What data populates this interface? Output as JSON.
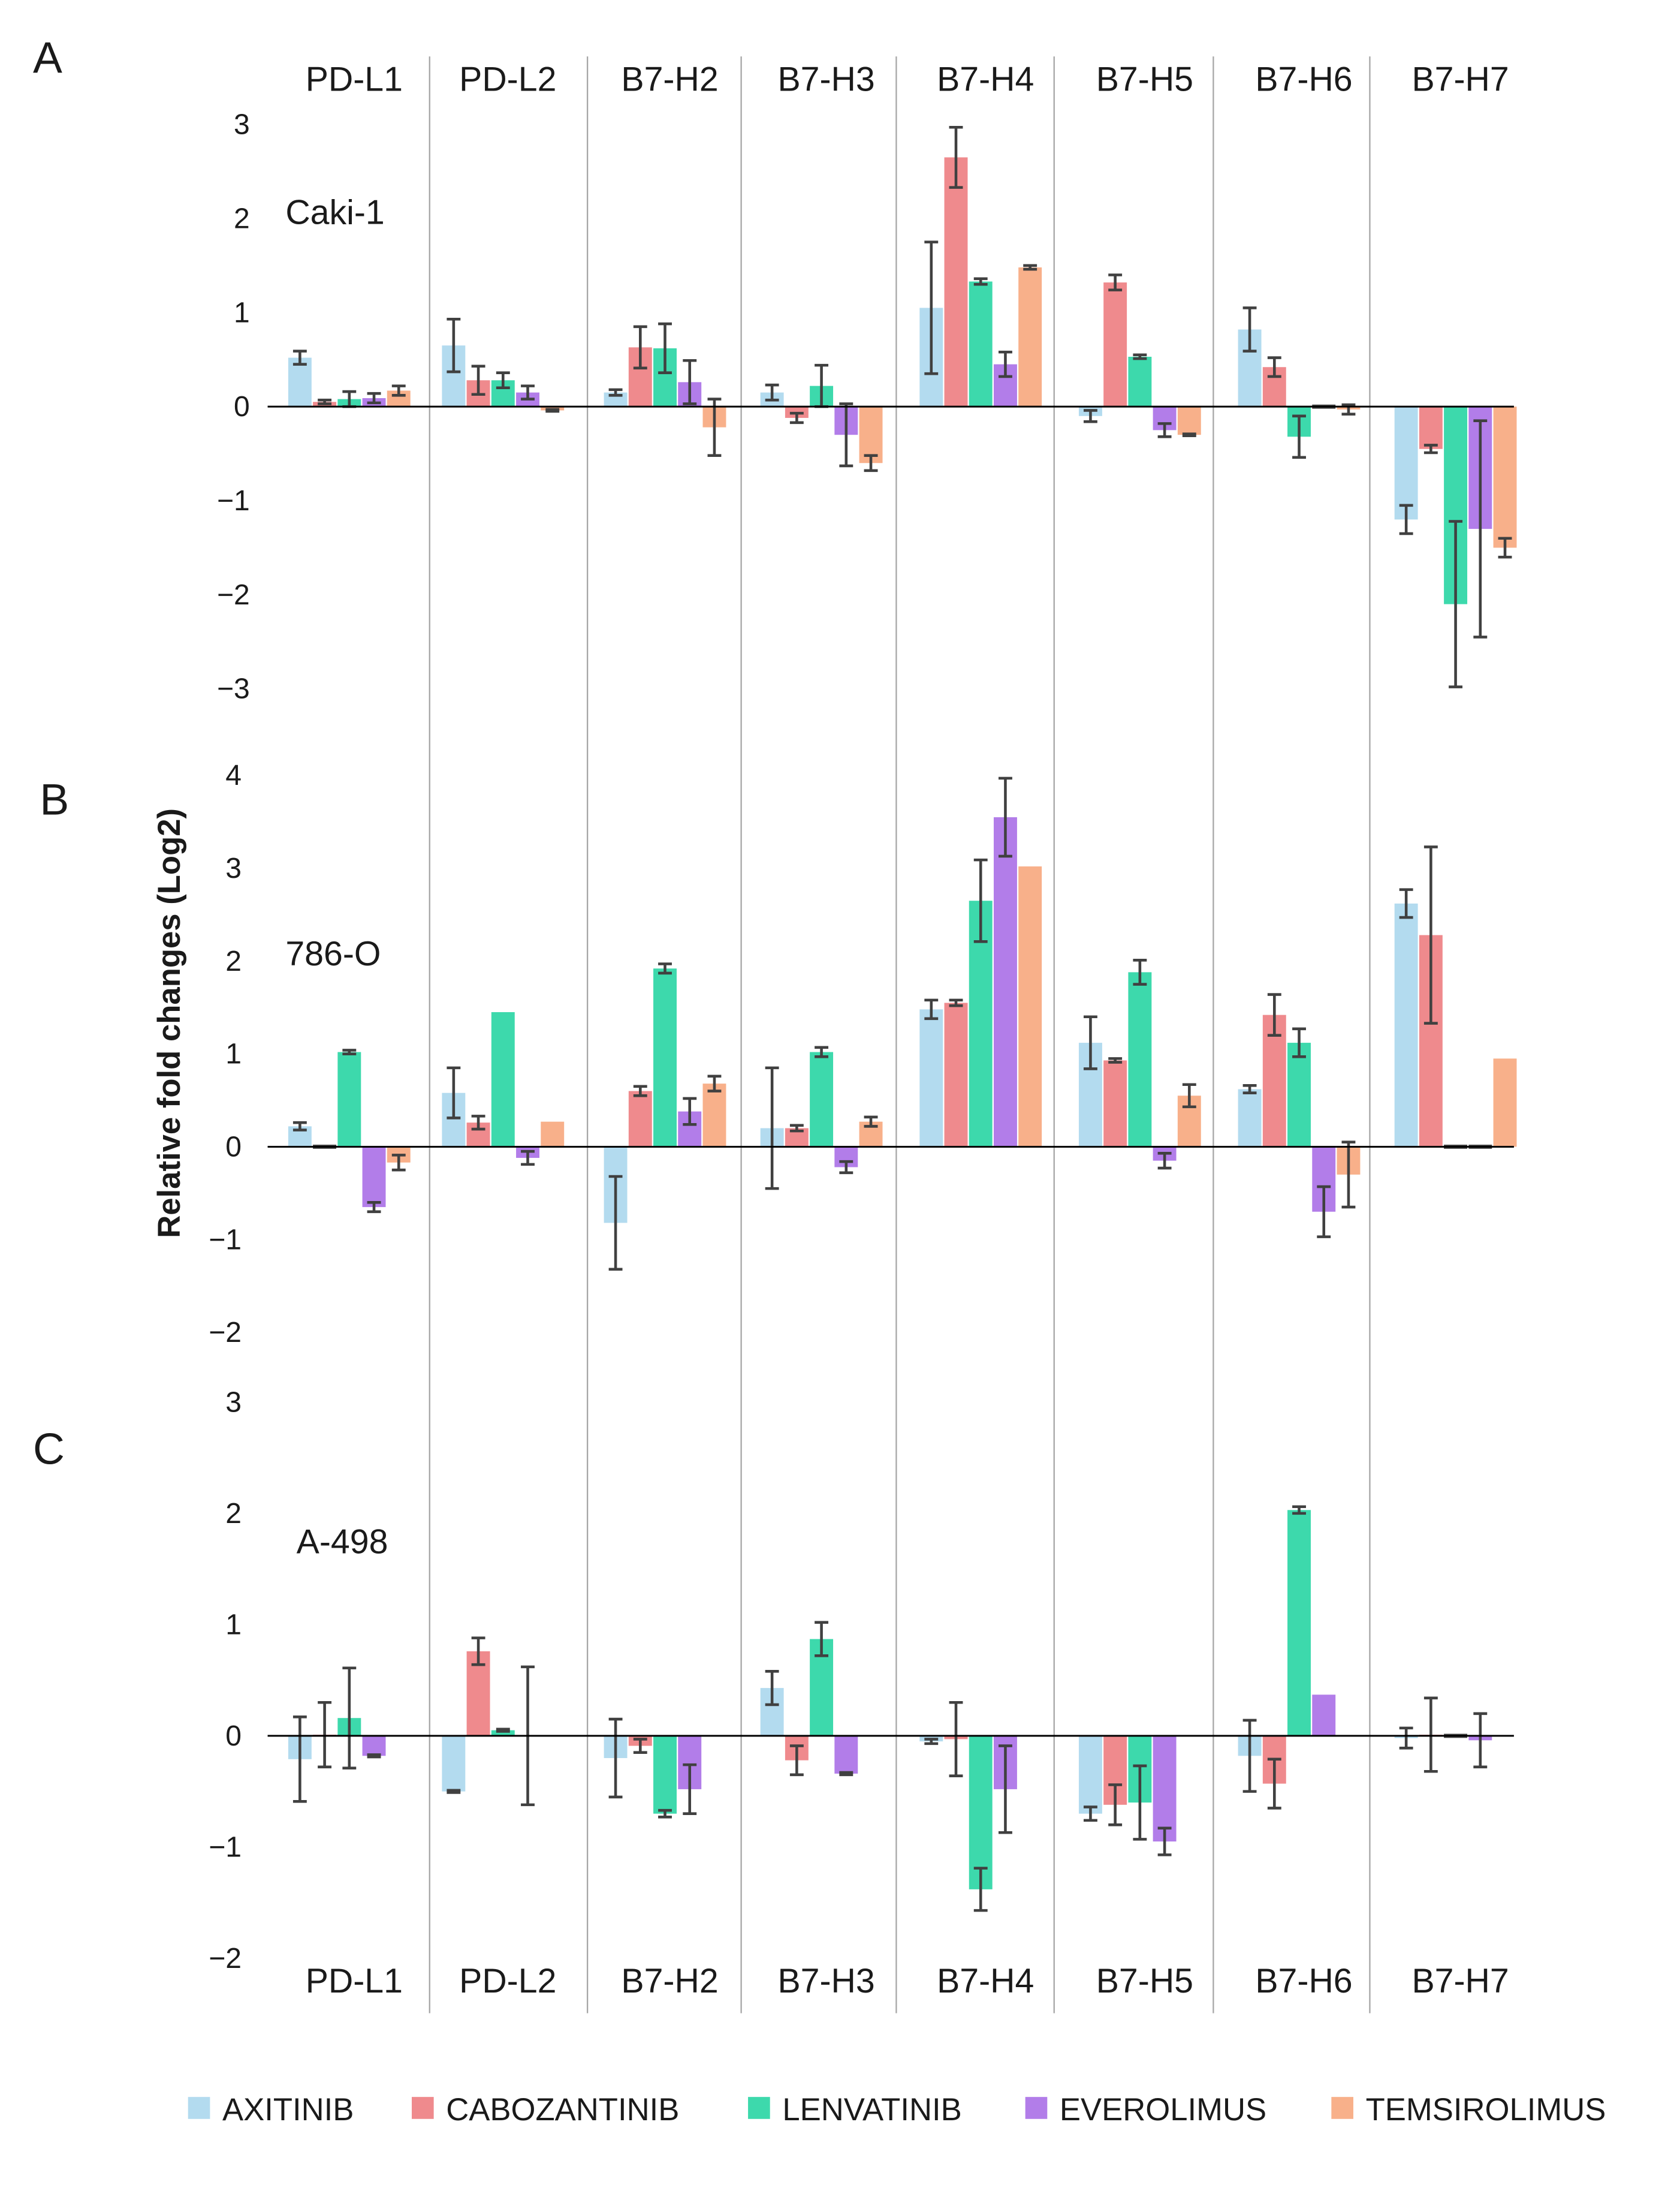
{
  "figure": {
    "y_axis_title": "Relative fold changes (Log2)",
    "legend": [
      {
        "name": "AXITINIB",
        "color": "#b3dbef"
      },
      {
        "name": "CABOZANTINIB",
        "color": "#ef8a8d"
      },
      {
        "name": "LENVATINIB",
        "color": "#3dd9ac"
      },
      {
        "name": "EVEROLIMUS",
        "color": "#b27de9"
      },
      {
        "name": "TEMSIROLIMUS",
        "color": "#f8b08a"
      }
    ],
    "error_bar_color": "#404040"
  },
  "chart_data": [
    {
      "type": "bar",
      "panel": "A",
      "title": "Caki-1",
      "categories": [
        "PD-L1",
        "PD-L2",
        "B7-H2",
        "B7-H3",
        "B7-H4",
        "B7-H5",
        "B7-H6",
        "B7-H7"
      ],
      "top_labels": [
        "PD-L1",
        "PD-L2",
        "B7-H2",
        "B7-H3",
        "B7-H4",
        "B7-H5",
        "B7-H6",
        "B7-H7"
      ],
      "bottom_labels": [],
      "ylabel": "Relative fold changes (Log2)",
      "ylim": [
        -3,
        3
      ],
      "ticks": [
        3,
        2,
        1,
        0,
        -1,
        -2,
        -3
      ],
      "tick_labels": [
        "3",
        "2",
        "1",
        "0",
        "−1",
        "−2",
        "−3"
      ],
      "series": [
        {
          "name": "AXITINIB",
          "values": [
            0.52,
            0.65,
            0.15,
            0.15,
            1.05,
            -0.1,
            0.82,
            -1.2
          ],
          "errors": [
            0.07,
            0.28,
            0.03,
            0.08,
            0.7,
            0.06,
            0.23,
            0.15
          ]
        },
        {
          "name": "CABOZANTINIB",
          "values": [
            0.05,
            0.28,
            0.63,
            -0.12,
            2.65,
            1.32,
            0.42,
            -0.45
          ],
          "errors": [
            0.02,
            0.15,
            0.22,
            0.05,
            0.32,
            0.08,
            0.1,
            0.04
          ]
        },
        {
          "name": "LENVATINIB",
          "values": [
            0.08,
            0.28,
            0.62,
            0.22,
            1.33,
            0.53,
            -0.32,
            -2.1
          ],
          "errors": [
            0.08,
            0.08,
            0.26,
            0.22,
            0.03,
            0.02,
            0.22,
            0.88
          ]
        },
        {
          "name": "EVEROLIMUS",
          "values": [
            0.09,
            0.15,
            0.26,
            -0.3,
            0.45,
            -0.25,
            0.0,
            -1.3
          ],
          "errors": [
            0.05,
            0.07,
            0.23,
            0.33,
            0.13,
            0.07,
            0.0,
            1.15
          ]
        },
        {
          "name": "TEMSIROLIMUS",
          "values": [
            0.17,
            -0.04,
            -0.22,
            -0.6,
            1.48,
            -0.3,
            -0.03,
            -1.5
          ],
          "errors": [
            0.05,
            0.01,
            0.3,
            0.08,
            0.02,
            0.01,
            0.05,
            0.1
          ]
        }
      ]
    },
    {
      "type": "bar",
      "panel": "B",
      "title": "786-O",
      "categories": [
        "PD-L1",
        "PD-L2",
        "B7-H2",
        "B7-H3",
        "B7-H4",
        "B7-H5",
        "B7-H6",
        "B7-H7"
      ],
      "top_labels": [],
      "bottom_labels": [],
      "ylabel": "Relative fold changes (Log2)",
      "ylim": [
        -2,
        4
      ],
      "ticks": [
        4,
        3,
        2,
        1,
        0,
        -1,
        -2
      ],
      "tick_labels": [
        "4",
        "3",
        "2",
        "1",
        "0",
        "−1",
        "−2"
      ],
      "series": [
        {
          "name": "AXITINIB",
          "values": [
            0.22,
            0.58,
            -0.82,
            0.2,
            1.48,
            1.12,
            0.62,
            2.62
          ],
          "errors": [
            0.04,
            0.27,
            0.5,
            0.65,
            0.1,
            0.28,
            0.04,
            0.15
          ]
        },
        {
          "name": "CABOZANTINIB",
          "values": [
            0.0,
            0.26,
            0.6,
            0.2,
            1.55,
            0.93,
            1.42,
            2.28
          ],
          "errors": [
            0.0,
            0.07,
            0.05,
            0.03,
            0.03,
            0.02,
            0.22,
            0.95
          ]
        },
        {
          "name": "LENVATINIB",
          "values": [
            1.02,
            1.45,
            1.92,
            1.02,
            2.65,
            1.88,
            1.12,
            0.0
          ],
          "errors": [
            0.02,
            0.0,
            0.05,
            0.05,
            0.44,
            0.13,
            0.15,
            0.0
          ]
        },
        {
          "name": "EVEROLIMUS",
          "values": [
            -0.65,
            -0.12,
            0.38,
            -0.22,
            3.55,
            -0.15,
            -0.7,
            0.0
          ],
          "errors": [
            0.05,
            0.07,
            0.14,
            0.06,
            0.42,
            0.08,
            0.27,
            0.0
          ]
        },
        {
          "name": "TEMSIROLIMUS",
          "values": [
            -0.17,
            0.27,
            0.68,
            0.27,
            3.02,
            0.55,
            -0.3,
            0.95
          ],
          "errors": [
            0.08,
            0.0,
            0.08,
            0.05,
            0.0,
            0.12,
            0.35,
            0.0
          ]
        }
      ]
    },
    {
      "type": "bar",
      "panel": "C",
      "title": "A-498",
      "categories": [
        "PD-L1",
        "PD-L2",
        "B7-H2",
        "B7-H3",
        "B7-H4",
        "B7-H5",
        "B7-H6",
        "B7-H7"
      ],
      "top_labels": [],
      "bottom_labels": [
        "PD-L1",
        "PD-L2",
        "B7-H2",
        "B7-H3",
        "B7-H4",
        "B7-H5",
        "B7-H6",
        "B7-H7"
      ],
      "ylabel": "Relative fold changes (Log2)",
      "ylim": [
        -2,
        3
      ],
      "ticks": [
        3,
        2,
        1,
        0,
        -1,
        -2
      ],
      "tick_labels": [
        "3",
        "2",
        "1",
        "0",
        "−1",
        "−2"
      ],
      "series": [
        {
          "name": "AXITINIB",
          "values": [
            -0.21,
            -0.5,
            -0.2,
            0.43,
            -0.05,
            -0.7,
            -0.18,
            -0.02
          ],
          "errors": [
            0.38,
            0.01,
            0.35,
            0.15,
            0.02,
            0.06,
            0.32,
            0.09
          ]
        },
        {
          "name": "CABOZANTINIB",
          "values": [
            0.01,
            0.76,
            -0.09,
            -0.22,
            -0.03,
            -0.62,
            -0.43,
            0.01
          ],
          "errors": [
            0.29,
            0.12,
            0.06,
            0.13,
            0.33,
            0.18,
            0.22,
            0.33
          ]
        },
        {
          "name": "LENVATINIB",
          "values": [
            0.16,
            0.05,
            -0.7,
            0.87,
            -1.38,
            -0.6,
            2.03,
            0.0
          ],
          "errors": [
            0.45,
            0.01,
            0.03,
            0.15,
            0.19,
            0.33,
            0.03,
            0.0
          ]
        },
        {
          "name": "EVEROLIMUS",
          "values": [
            -0.18,
            0.0,
            -0.48,
            -0.34,
            -0.48,
            -0.95,
            0.37,
            -0.04
          ],
          "errors": [
            0.01,
            0.62,
            0.22,
            0.01,
            0.39,
            0.12,
            0.0,
            0.24
          ]
        },
        {
          "name": "TEMSIROLIMUS",
          "values": [
            0,
            0,
            0,
            0,
            0,
            0,
            0,
            0
          ],
          "errors": [
            0,
            0,
            0,
            0,
            0,
            0,
            0,
            0
          ]
        }
      ]
    }
  ]
}
